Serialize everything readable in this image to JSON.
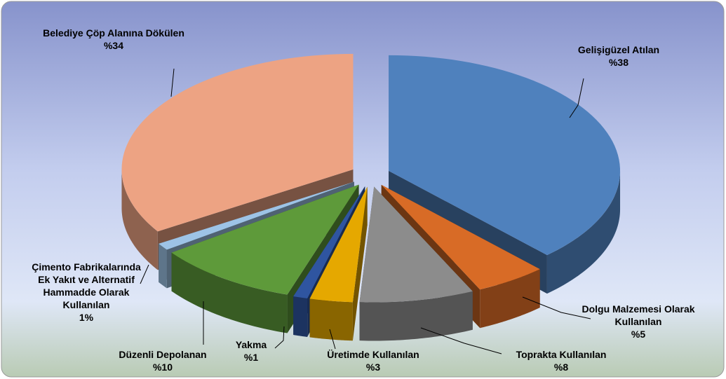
{
  "chart_data": {
    "type": "pie3d",
    "categories": [
      "Gelişigüzel Atılan",
      "Dolgu Malzemesi Olarak Kullanılan",
      "Toprakta Kullanılan",
      "Üretimde Kullanılan",
      "Yakma",
      "Düzenli Depolanan",
      "Çimento Fabrikalarında Ek Yakıt ve Alternatif Hammadde Olarak Kullanılan",
      "Belediye Çöp Alanına Dökülen"
    ],
    "values": [
      38,
      5,
      8,
      3,
      1,
      10,
      1,
      34
    ],
    "value_labels": [
      "%38",
      "%5",
      "%8",
      "%3",
      "%1",
      "%10",
      "1%",
      "%34"
    ],
    "colors": [
      "#4f81bd",
      "#d86b26",
      "#8c8c8c",
      "#e5a800",
      "#2f55a0",
      "#5e9a3a",
      "#9dc3e6",
      "#eda383"
    ]
  }
}
